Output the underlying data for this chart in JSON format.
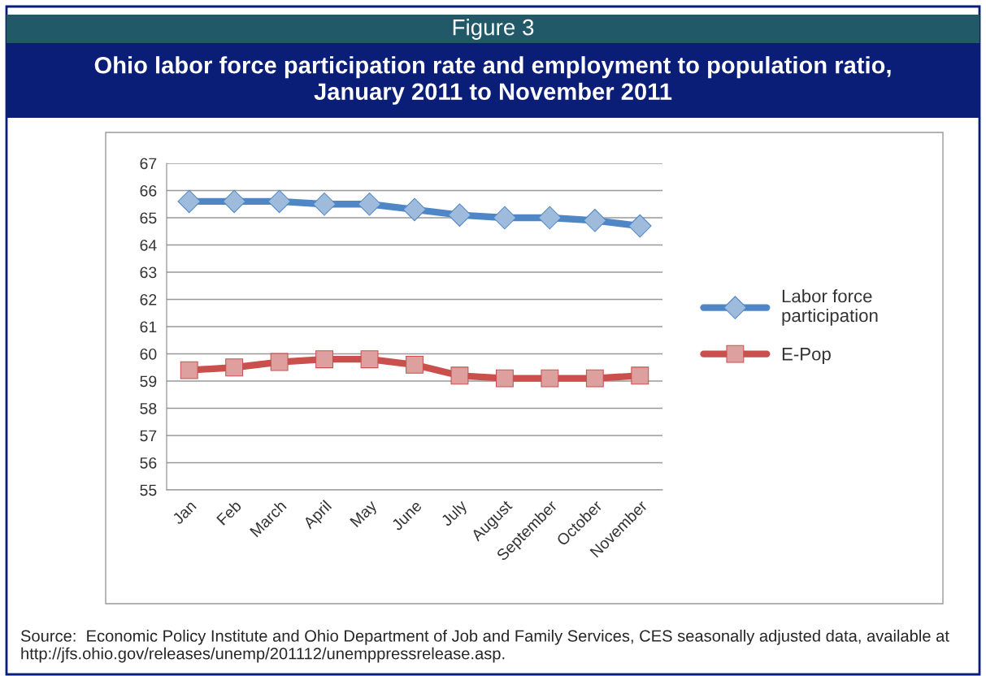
{
  "chart_data": {
    "type": "line",
    "title": "Figure 3",
    "subtitle": "Ohio labor force participation rate and employment to population ratio,\nJanuary 2011 to November 2011",
    "categories": [
      "Jan",
      "Feb",
      "March",
      "April",
      "May",
      "June",
      "July",
      "August",
      "September",
      "October",
      "November"
    ],
    "series": [
      {
        "name": "Labor force\nparticipation",
        "color": "#4f86c6",
        "marker": "diamond",
        "values": [
          65.6,
          65.6,
          65.6,
          65.5,
          65.5,
          65.3,
          65.1,
          65.0,
          65.0,
          64.9,
          64.7
        ]
      },
      {
        "name": "E-Pop",
        "color": "#c9504d",
        "marker": "square",
        "values": [
          59.4,
          59.5,
          59.7,
          59.8,
          59.8,
          59.6,
          59.2,
          59.1,
          59.1,
          59.1,
          59.2
        ]
      }
    ],
    "ylim": [
      55,
      67
    ],
    "yticks": [
      55,
      56,
      57,
      58,
      59,
      60,
      61,
      62,
      63,
      64,
      65,
      66,
      67
    ],
    "grid": "y",
    "legend": "right",
    "line_style": "solid",
    "annotations": [
      "Source:  Economic Policy Institute and Ohio Department of Job and Family Services, CES seasonally adjusted data, available at http://jfs.ohio.gov/releases/unemp/201112/unemppressrelease.asp."
    ]
  }
}
